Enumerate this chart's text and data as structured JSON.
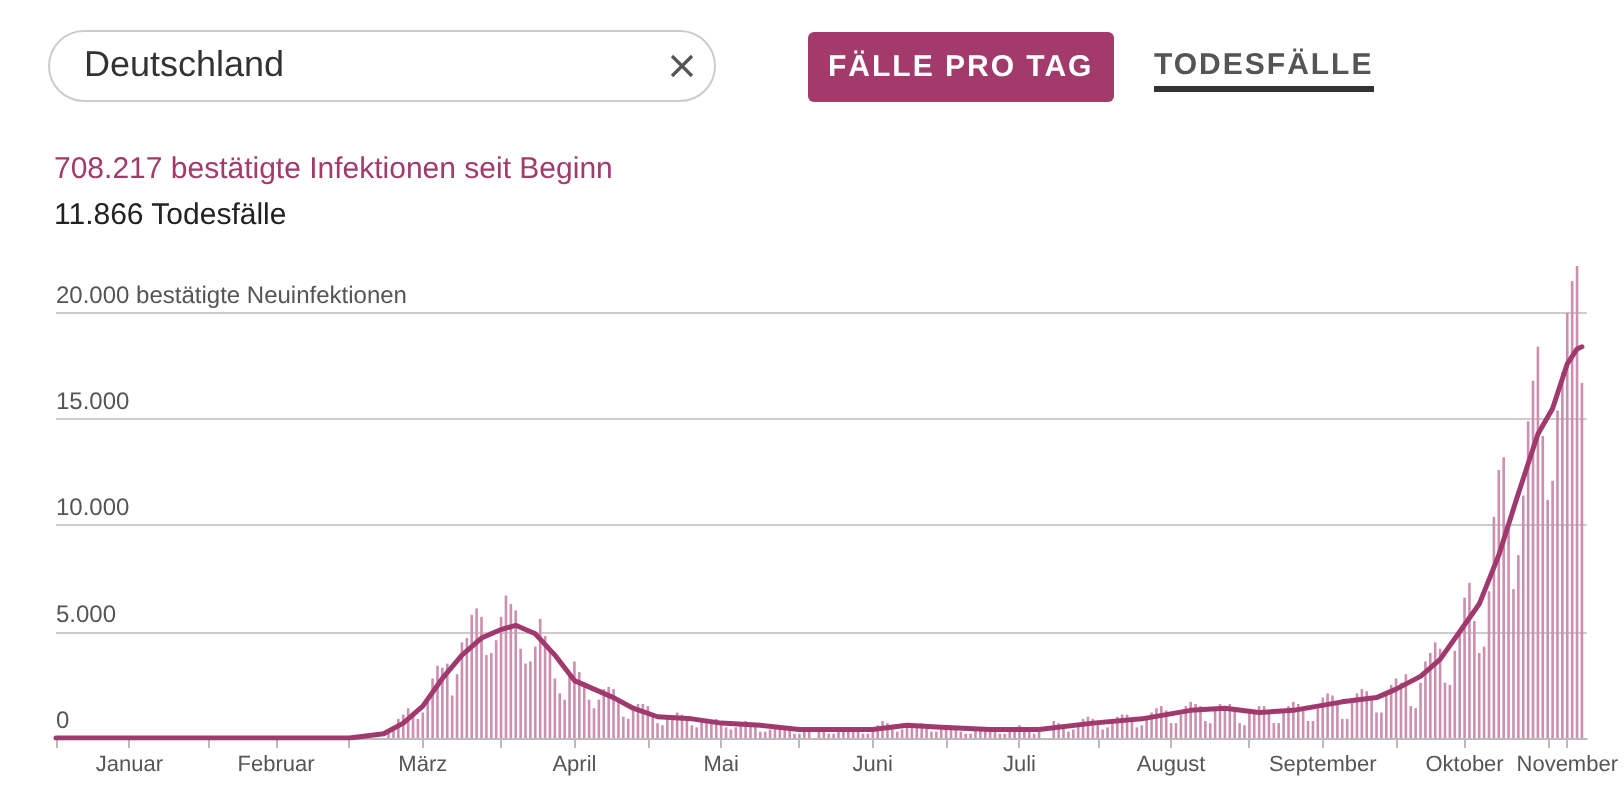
{
  "chart_data": {
    "type": "bar",
    "title": "708.217 bestätigte Infektionen seit Beginn",
    "subtitle": "11.866 Todesfälle",
    "annotations": [
      "Deutschland",
      "FÄLLE PRO TAG",
      "TODESFÄLLE"
    ],
    "xlim": [
      "--01-01",
      "--11-09"
    ],
    "xticks": [
      {
        "value": "--01-01",
        "label": null
      },
      {
        "value": "--01-16",
        "label": "Januar"
      },
      {
        "value": "--02-01",
        "label": null
      },
      {
        "value": "--02-15",
        "label": "Februar"
      },
      {
        "value": "--03-01",
        "label": null
      },
      {
        "value": "--03-16",
        "label": "März"
      },
      {
        "value": "--04-01",
        "label": null
      },
      {
        "value": "--04-16",
        "label": "April"
      },
      {
        "value": "--05-01",
        "label": null
      },
      {
        "value": "--05-16",
        "label": "Mai"
      },
      {
        "value": "--06-01",
        "label": null
      },
      {
        "value": "--06-16",
        "label": "Juni"
      },
      {
        "value": "--07-01",
        "label": null
      },
      {
        "value": "--07-16",
        "label": "Juli"
      },
      {
        "value": "--08-01",
        "label": null
      },
      {
        "value": "--08-16",
        "label": "August"
      },
      {
        "value": "--09-01",
        "label": null
      },
      {
        "value": "--09-16",
        "label": "September"
      },
      {
        "value": "--10-01",
        "label": null
      },
      {
        "value": "--10-15",
        "label": "Oktober"
      },
      {
        "value": "--11-01",
        "label": null
      },
      {
        "value": "--11-05",
        "label": "November"
      }
    ],
    "ylim": [
      0,
      22200
    ],
    "yticks": [
      0,
      {
        "value": 5000,
        "label": "5.000"
      },
      {
        "value": 10000,
        "label": "10.000"
      },
      {
        "value": 15000,
        "label": "15.000"
      },
      {
        "value": 20000,
        "label": "20.000 bestätigte Neuinfektionen"
      }
    ],
    "grid": "y",
    "marker": "none",
    "line_style": "solid",
    "series": [
      {
        "color": "#cc8fb0",
        "x": [
          "--03-09",
          "--03-10",
          "--03-11",
          "--03-12",
          "--03-13",
          "--03-14",
          "--03-15",
          "--03-16",
          "--03-17",
          "--03-18",
          "--03-19",
          "--03-20",
          "--03-21",
          "--03-22",
          "--03-23",
          "--03-24",
          "--03-25",
          "--03-26",
          "--03-27",
          "--03-28",
          "--03-29",
          "--03-30",
          "--03-31",
          "--04-01",
          "--04-02",
          "--04-03",
          "--04-04",
          "--04-05",
          "--04-06",
          "--04-07",
          "--04-08",
          "--04-09",
          "--04-10",
          "--04-11",
          "--04-12",
          "--04-13",
          "--04-14",
          "--04-15",
          "--04-16",
          "--04-17",
          "--04-18",
          "--04-19",
          "--04-20",
          "--04-21",
          "--04-22",
          "--04-23",
          "--04-24",
          "--04-25",
          "--04-26",
          "--04-27",
          "--04-28",
          "--04-29",
          "--04-30",
          "--05-01",
          "--05-02",
          "--05-03",
          "--05-04",
          "--05-05",
          "--05-06",
          "--05-07",
          "--05-08",
          "--05-09",
          "--05-10",
          "--05-11",
          "--05-12",
          "--05-13",
          "--05-14",
          "--05-15",
          "--05-16",
          "--05-17",
          "--05-18",
          "--05-19",
          "--05-20",
          "--05-21",
          "--05-22",
          "--05-23",
          "--05-24",
          "--05-25",
          "--05-26",
          "--05-27",
          "--05-28",
          "--05-29",
          "--05-30",
          "--05-31",
          "--06-01",
          "--06-02",
          "--06-03",
          "--06-04",
          "--06-05",
          "--06-06",
          "--06-07",
          "--06-08",
          "--06-09",
          "--06-10",
          "--06-11",
          "--06-12",
          "--06-13",
          "--06-14",
          "--06-15",
          "--06-16",
          "--06-17",
          "--06-18",
          "--06-19",
          "--06-20",
          "--06-21",
          "--06-22",
          "--06-23",
          "--06-24",
          "--06-25",
          "--06-26",
          "--06-27",
          "--06-28",
          "--06-29",
          "--06-30",
          "--07-01",
          "--07-02",
          "--07-03",
          "--07-04",
          "--07-05",
          "--07-06",
          "--07-07",
          "--07-08",
          "--07-09",
          "--07-10",
          "--07-11",
          "--07-12",
          "--07-13",
          "--07-14",
          "--07-15",
          "--07-16",
          "--07-17",
          "--07-18",
          "--07-19",
          "--07-20",
          "--07-21",
          "--07-22",
          "--07-23",
          "--07-24",
          "--07-25",
          "--07-26",
          "--07-27",
          "--07-28",
          "--07-29",
          "--07-30",
          "--07-31",
          "--08-01",
          "--08-02",
          "--08-03",
          "--08-04",
          "--08-05",
          "--08-06",
          "--08-07",
          "--08-08",
          "--08-09",
          "--08-10",
          "--08-11",
          "--08-12",
          "--08-13",
          "--08-14",
          "--08-15",
          "--08-16",
          "--08-17",
          "--08-18",
          "--08-19",
          "--08-20",
          "--08-21",
          "--08-22",
          "--08-23",
          "--08-24",
          "--08-25",
          "--08-26",
          "--08-27",
          "--08-28",
          "--08-29",
          "--08-30",
          "--08-31",
          "--09-01",
          "--09-02",
          "--09-03",
          "--09-04",
          "--09-05",
          "--09-06",
          "--09-07",
          "--09-08",
          "--09-09",
          "--09-10",
          "--09-11",
          "--09-12",
          "--09-13",
          "--09-14",
          "--09-15",
          "--09-16",
          "--09-17",
          "--09-18",
          "--09-19",
          "--09-20",
          "--09-21",
          "--09-22",
          "--09-23",
          "--09-24",
          "--09-25",
          "--09-26",
          "--09-27",
          "--09-28",
          "--09-29",
          "--09-30",
          "--10-01",
          "--10-02",
          "--10-03",
          "--10-04",
          "--10-05",
          "--10-06",
          "--10-07",
          "--10-08",
          "--10-09",
          "--10-10",
          "--10-11",
          "--10-12",
          "--10-13",
          "--10-14",
          "--10-15",
          "--10-16",
          "--10-17",
          "--10-18",
          "--10-19",
          "--10-20",
          "--10-21",
          "--10-22",
          "--10-23",
          "--10-24",
          "--10-25",
          "--10-26",
          "--10-27",
          "--10-28",
          "--10-29",
          "--10-30",
          "--10-31",
          "--11-01",
          "--11-02",
          "--11-03",
          "--11-04",
          "--11-05",
          "--11-06",
          "--11-07",
          "--11-08"
        ],
        "values": [
          300,
          500,
          900,
          1100,
          1400,
          1200,
          900,
          1200,
          1700,
          2800,
          3400,
          3300,
          3500,
          2000,
          3000,
          4500,
          4700,
          5800,
          6100,
          5700,
          3900,
          4000,
          4600,
          5700,
          6700,
          6300,
          6000,
          4200,
          3500,
          3600,
          4300,
          5600,
          4800,
          4100,
          2800,
          2100,
          1800,
          2900,
          3600,
          3100,
          2600,
          1800,
          1400,
          1800,
          2300,
          2400,
          2300,
          1800,
          1000,
          900,
          1300,
          1600,
          1600,
          1500,
          1000,
          700,
          600,
          900,
          1000,
          1200,
          1100,
          800,
          600,
          500,
          800,
          900,
          800,
          900,
          600,
          500,
          400,
          500,
          700,
          800,
          700,
          600,
          300,
          300,
          400,
          600,
          500,
          500,
          400,
          200,
          200,
          300,
          400,
          null,
          400,
          300,
          200,
          200,
          300,
          400,
          500,
          400,
          300,
          200,
          200,
          400,
          600,
          800,
          700,
          500,
          300,
          400,
          500,
          700,
          600,
          700,
          500,
          300,
          300,
          400,
          500,
          500,
          400,
          300,
          200,
          200,
          400,
          400,
          500,
          400,
          300,
          200,
          200,
          300,
          500,
          600,
          500,
          400,
          200,
          300,
          null,
          null,
          800,
          700,
          500,
          300,
          400,
          600,
          900,
          1000,
          900,
          700,
          400,
          500,
          800,
          1000,
          1100,
          1100,
          900,
          500,
          600,
          1000,
          1200,
          1400,
          1500,
          1300,
          700,
          700,
          1100,
          1500,
          1700,
          1600,
          1500,
          800,
          700,
          1300,
          1600,
          1500,
          1600,
          1400,
          700,
          600,
          1200,
          1300,
          1500,
          1500,
          1200,
          700,
          700,
          1200,
          1500,
          1700,
          1600,
          1300,
          800,
          800,
          1400,
          1900,
          2100,
          2000,
          1700,
          900,
          900,
          1700,
          2100,
          2300,
          2200,
          1900,
          1200,
          1200,
          2100,
          2500,
          2800,
          2600,
          3000,
          1500,
          1400,
          2600,
          3600,
          4000,
          4500,
          4200,
          2600,
          2500,
          4100,
          5000,
          6600,
          7300,
          5500,
          4000,
          4300,
          6900,
          10400,
          12600,
          13200,
          10000,
          7000,
          8600,
          11400,
          14900,
          16800,
          18400,
          14200,
          11200,
          12100,
          15400,
          17200,
          20000,
          21500,
          22200,
          16700
        ]
      },
      {
        "type": "line",
        "color": "#a03a6e",
        "x": [
          "--01-01",
          "--02-20",
          "--03-01",
          "--03-08",
          "--03-12",
          "--03-16",
          "--03-20",
          "--03-24",
          "--03-28",
          "--04-01",
          "--04-04",
          "--04-08",
          "--04-12",
          "--04-16",
          "--04-20",
          "--04-24",
          "--04-28",
          "--05-03",
          "--05-10",
          "--05-16",
          "--05-24",
          "--06-01",
          "--06-10",
          "--06-16",
          "--06-23",
          "--06-30",
          "--07-10",
          "--07-20",
          "--07-31",
          "--08-10",
          "--08-20",
          "--08-27",
          "--09-03",
          "--09-10",
          "--09-20",
          "--09-27",
          "--10-01",
          "--10-06",
          "--10-10",
          "--10-14",
          "--10-18",
          "--10-22",
          "--10-26",
          "--10-30",
          "--11-02",
          "--11-05",
          "--11-07",
          "--11-08"
        ],
        "values": [
          0,
          0,
          0,
          200,
          700,
          1500,
          2800,
          3900,
          4700,
          5100,
          5300,
          4900,
          3900,
          2700,
          2300,
          1900,
          1400,
          1000,
          900,
          700,
          600,
          400,
          400,
          400,
          600,
          500,
          400,
          400,
          700,
          900,
          1300,
          1400,
          1200,
          1300,
          1700,
          1900,
          2300,
          2900,
          3700,
          5000,
          6300,
          8600,
          11500,
          14300,
          15500,
          17600,
          18300,
          18400
        ]
      }
    ]
  }
}
